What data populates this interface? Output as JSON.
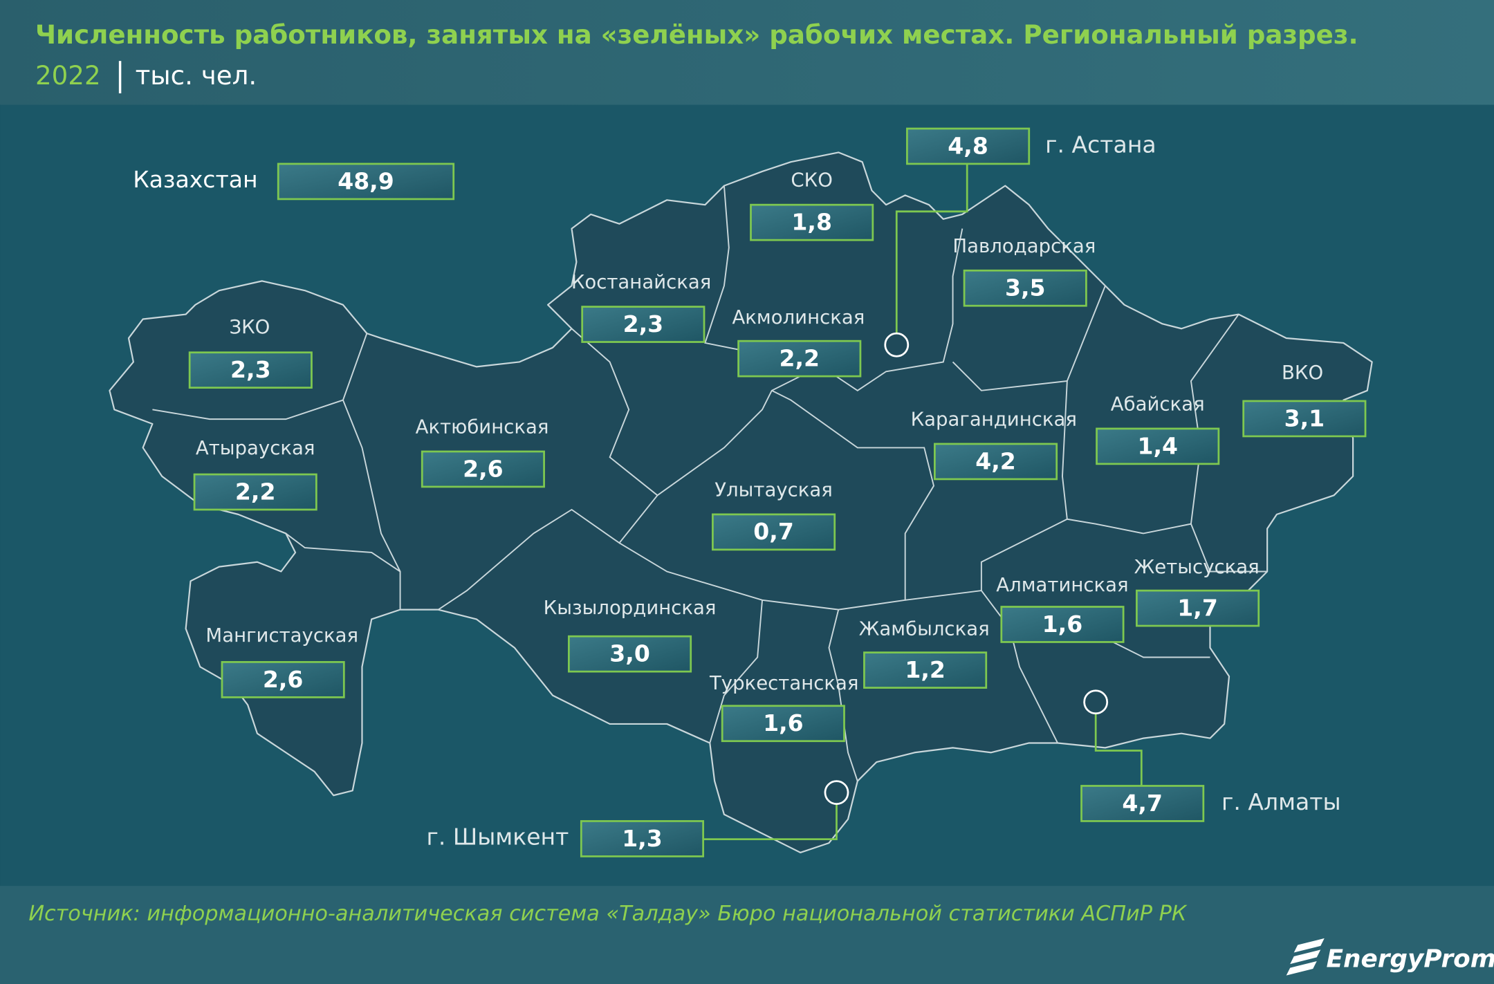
{
  "header": {
    "title": "Численность работников, занятых на «зелёных» рабочих местах. Региональный разрез.",
    "year": "2022",
    "unit": "тыс. чел."
  },
  "regions": [
    {
      "name": "Казахстан",
      "value": "48,9"
    },
    {
      "name": "СКО",
      "value": "1,8"
    },
    {
      "name": "г. Астана",
      "value": "4,8"
    },
    {
      "name": "Павлодарская",
      "value": "3,5"
    },
    {
      "name": "Костанайская",
      "value": "2,3"
    },
    {
      "name": "Акмолинская",
      "value": "2,2"
    },
    {
      "name": "ЗКО",
      "value": "2,3"
    },
    {
      "name": "Актюбинская",
      "value": "2,6"
    },
    {
      "name": "Атырауская",
      "value": "2,2"
    },
    {
      "name": "Карагандинская",
      "value": "4,2"
    },
    {
      "name": "Абайская",
      "value": "1,4"
    },
    {
      "name": "ВКО",
      "value": "3,1"
    },
    {
      "name": "Улытауская",
      "value": "0,7"
    },
    {
      "name": "Кызылординская",
      "value": "3,0"
    },
    {
      "name": "Жетысуская",
      "value": "1,7"
    },
    {
      "name": "Алматинская",
      "value": "1,6"
    },
    {
      "name": "Жамбылская",
      "value": "1,2"
    },
    {
      "name": "Мангистауская",
      "value": "2,6"
    },
    {
      "name": "Туркестанская",
      "value": "1,6"
    },
    {
      "name": "г. Шымкент",
      "value": "1,3"
    },
    {
      "name": "г. Алматы",
      "value": "4,7"
    }
  ],
  "footer": {
    "source": "Источник: информационно-аналитическая система «Талдау» Бюро национальной статистики АСПиР РК",
    "logo": "EnergyProm"
  }
}
